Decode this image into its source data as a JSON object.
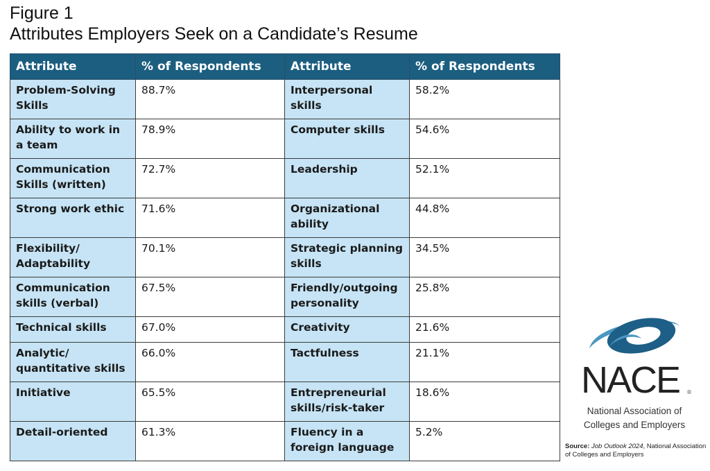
{
  "figure": {
    "label": "Figure 1",
    "title": "Attributes Employers Seek on a Candidate’s Resume"
  },
  "table": {
    "headers": [
      "Attribute",
      "% of Respondents",
      "Attribute",
      "% of Respondents"
    ],
    "rows": [
      {
        "a1": "Problem-Solving Skills",
        "v1": "88.7%",
        "a2": "Interpersonal skills",
        "v2": "58.2%"
      },
      {
        "a1": "Ability to work in a team",
        "v1": "78.9%",
        "a2": "Computer skills",
        "v2": "54.6%"
      },
      {
        "a1": "Communication Skills (written)",
        "v1": "72.7%",
        "a2": "Leadership",
        "v2": "52.1%"
      },
      {
        "a1": "Strong work ethic",
        "v1": "71.6%",
        "a2": "Organizational ability",
        "v2": "44.8%"
      },
      {
        "a1": "Flexibility/ Adaptability",
        "v1": "70.1%",
        "a2": "Strategic planning skills",
        "v2": "34.5%"
      },
      {
        "a1": "Communication skills (verbal)",
        "v1": "67.5%",
        "a2": "Friendly/outgoing personality",
        "v2": "25.8%"
      },
      {
        "a1": "Technical skills",
        "v1": "67.0%",
        "a2": "Creativity",
        "v2": "21.6%"
      },
      {
        "a1": "Analytic/ quantitative skills",
        "v1": "66.0%",
        "a2": "Tactfulness",
        "v2": "21.1%"
      },
      {
        "a1": "Initiative",
        "v1": "65.5%",
        "a2": "Entrepreneurial skills/risk-taker",
        "v2": "18.6%"
      },
      {
        "a1": "Detail-oriented",
        "v1": "61.3%",
        "a2": "Fluency in a foreign language",
        "v2": "5.2%"
      }
    ]
  },
  "logo": {
    "text": "NACE",
    "org_line1": "National Association of",
    "org_line2": "Colleges and Employers"
  },
  "source": {
    "label": "Source:",
    "publication": "Job Outlook 2024",
    "rest": ", National Association of Colleges and Employers"
  },
  "colors": {
    "header": "#1b5e80",
    "attribute_cell": "#c6e4f5",
    "logo_dark": "#1d5f86",
    "logo_light": "#4a97c2"
  }
}
